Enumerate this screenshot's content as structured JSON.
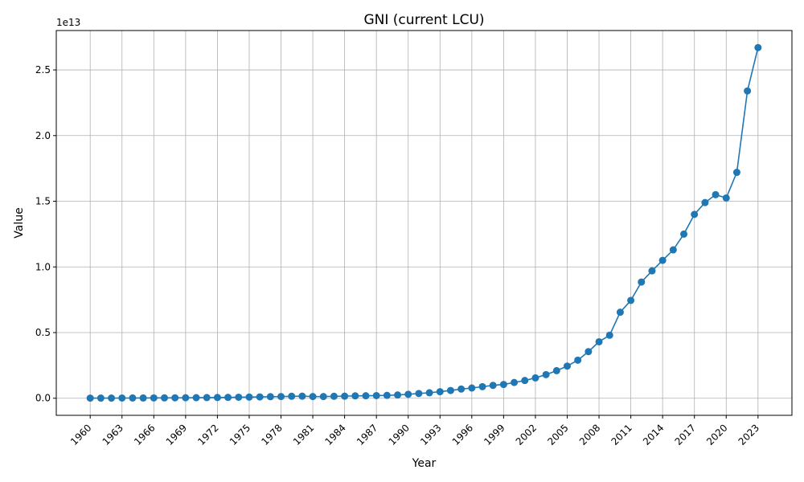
{
  "chart_data": {
    "type": "line",
    "title": "GNI (current LCU)",
    "xlabel": "Year",
    "ylabel": "Value",
    "y_offset_label": "1e13",
    "y_scale": 10000000000000,
    "xlim": [
      1956.8,
      2026.2
    ],
    "ylim": [
      -1300000000000.0,
      28000000000000.0
    ],
    "grid": true,
    "legend": "none",
    "color": "#1f77b4",
    "x_ticks": [
      1960,
      1963,
      1966,
      1969,
      1972,
      1975,
      1978,
      1981,
      1984,
      1987,
      1990,
      1993,
      1996,
      1999,
      2002,
      2005,
      2008,
      2011,
      2014,
      2017,
      2020,
      2023
    ],
    "y_ticks": [
      0,
      5000000000000.0,
      10000000000000.0,
      15000000000000.0,
      20000000000000.0,
      25000000000000.0
    ],
    "y_tick_labels": [
      "0.0",
      "0.5",
      "1.0",
      "1.5",
      "2.0",
      "2.5"
    ],
    "x": [
      1960,
      1961,
      1962,
      1963,
      1964,
      1965,
      1966,
      1967,
      1968,
      1969,
      1970,
      1971,
      1972,
      1973,
      1974,
      1975,
      1976,
      1977,
      1978,
      1979,
      1980,
      1981,
      1982,
      1983,
      1984,
      1985,
      1986,
      1987,
      1988,
      1989,
      1990,
      1991,
      1992,
      1993,
      1994,
      1995,
      1996,
      1997,
      1998,
      1999,
      2000,
      2001,
      2002,
      2003,
      2004,
      2005,
      2006,
      2007,
      2008,
      2009,
      2010,
      2011,
      2012,
      2013,
      2014,
      2015,
      2016,
      2017,
      2018,
      2019,
      2020,
      2021,
      2022,
      2023
    ],
    "y": [
      10000000000.0,
      12000000000.0,
      14000000000.0,
      16000000000.0,
      19000000000.0,
      22000000000.0,
      25000000000.0,
      29000000000.0,
      33000000000.0,
      38000000000.0,
      44000000000.0,
      50000000000.0,
      58000000000.0,
      68000000000.0,
      80000000000.0,
      90000000000.0,
      100000000000.0,
      120000000000.0,
      130000000000.0,
      150000000000.0,
      160000000000.0,
      130000000000.0,
      130000000000.0,
      150000000000.0,
      160000000000.0,
      180000000000.0,
      190000000000.0,
      200000000000.0,
      220000000000.0,
      250000000000.0,
      300000000000.0,
      360000000000.0,
      420000000000.0,
      500000000000.0,
      590000000000.0,
      700000000000.0,
      780000000000.0,
      880000000000.0,
      980000000000.0,
      1050000000000.0,
      1200000000000.0,
      1350000000000.0,
      1550000000000.0,
      1800000000000.0,
      2100000000000.0,
      2450000000000.0,
      2900000000000.0,
      3550000000000.0,
      4300000000000.0,
      4800000000000.0,
      6550000000000.0,
      7450000000000.0,
      8850000000000.0,
      9700000000000.0,
      10500000000000.0,
      11300000000000.0,
      12500000000000.0,
      14000000000000.0,
      14900000000000.0,
      15500000000000.0,
      15250000000000.0,
      17200000000000.0,
      23400000000000.0,
      26700000000000.0
    ]
  }
}
